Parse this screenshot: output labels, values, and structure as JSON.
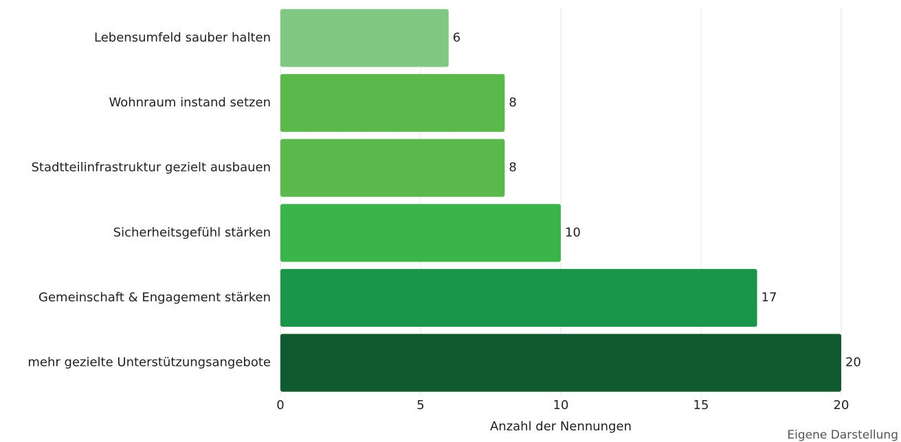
{
  "chart_data": {
    "type": "barh",
    "categories": [
      "Lebensumfeld sauber halten",
      "Wohnraum instand setzen",
      "Stadtteilinfrastruktur gezielt ausbauen",
      "Sicherheitsgefühl stärken",
      "Gemeinschaft & Engagement stärken",
      "mehr gezielte Unterstützungsangebote"
    ],
    "values": [
      6,
      8,
      8,
      10,
      17,
      20
    ],
    "colors": [
      "#81c784",
      "#5ab94a",
      "#5ab94a",
      "#39b54a",
      "#199649",
      "#0f5b2f"
    ],
    "xlim": [
      0,
      20
    ],
    "xticks": [
      0,
      5,
      10,
      15,
      20
    ],
    "grid": true,
    "xlabel": "Anzahl der Nennungen",
    "source": "Eigene Darstellung"
  }
}
